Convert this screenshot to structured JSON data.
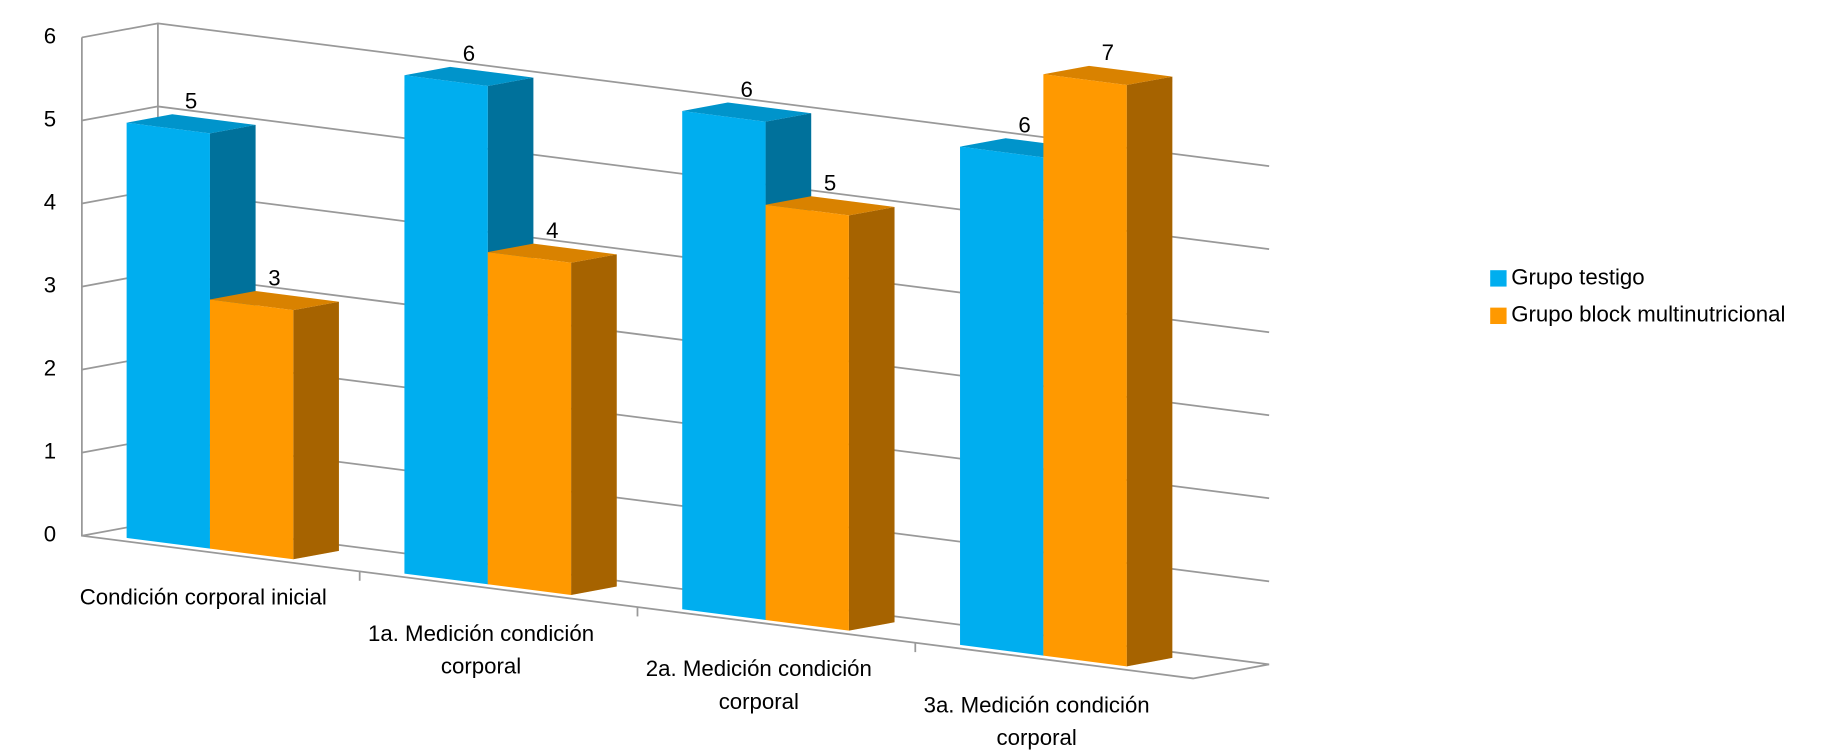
{
  "chart_data": {
    "type": "bar3d",
    "categories": [
      "Condición corporal inicial",
      "1a. Medición condición corporal",
      "2a. Medición condición corporal",
      "3a. Medición condición corporal"
    ],
    "series": [
      {
        "name": "Grupo testigo",
        "color": "#00aeef",
        "values": [
          5,
          6,
          6,
          6
        ]
      },
      {
        "name": "Grupo block multinutricional",
        "color": "#ff9900",
        "values": [
          3,
          4,
          5,
          7
        ]
      }
    ],
    "ylim": [
      0,
      6
    ],
    "yticks": [
      0,
      1,
      2,
      3,
      4,
      5,
      6
    ],
    "grid": true,
    "legend": "right"
  }
}
